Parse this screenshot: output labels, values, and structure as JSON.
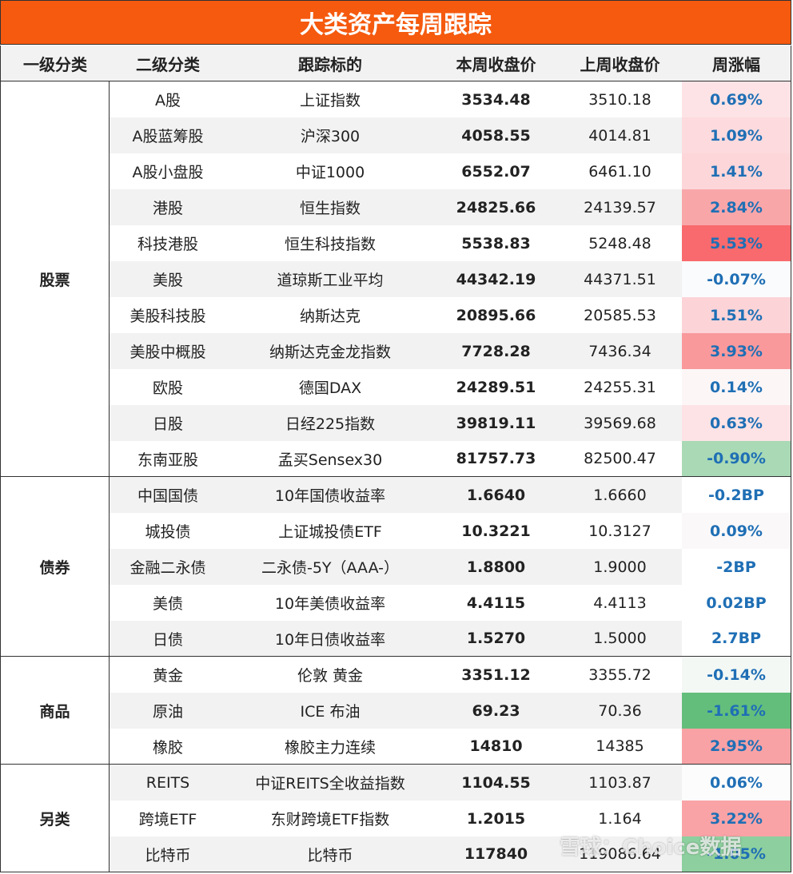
{
  "header": {
    "title": "大类资产每周跟踪"
  },
  "table": {
    "columns": [
      "一级分类",
      "二级分类",
      "跟踪标的",
      "本周收盘价",
      "上周收盘价",
      "周涨幅"
    ],
    "groups": [
      {
        "name": "股票",
        "rows": [
          [
            "A股",
            "上证指数",
            "3534.48",
            "3510.18",
            "0.69%"
          ],
          [
            "A股蓝筹股",
            "沪深300",
            "4058.55",
            "4014.81",
            "1.09%"
          ],
          [
            "A股小盘股",
            "中证1000",
            "6552.07",
            "6461.10",
            "1.41%"
          ],
          [
            "港股",
            "恒生指数",
            "24825.66",
            "24139.57",
            "2.84%"
          ],
          [
            "科技港股",
            "恒生科技指数",
            "5538.83",
            "5248.48",
            "5.53%"
          ],
          [
            "美股",
            "道琼斯工业平均",
            "44342.19",
            "44371.51",
            "-0.07%"
          ],
          [
            "美股科技股",
            "纳斯达克",
            "20895.66",
            "20585.53",
            "1.51%"
          ],
          [
            "美股中概股",
            "纳斯达克金龙指数",
            "7728.28",
            "7436.34",
            "3.93%"
          ],
          [
            "欧股",
            "德国DAX",
            "24289.51",
            "24255.31",
            "0.14%"
          ],
          [
            "日股",
            "日经225指数",
            "39819.11",
            "39569.68",
            "0.63%"
          ],
          [
            "东南亚股",
            "孟买Sensex30",
            "81757.73",
            "82500.47",
            "-0.90%"
          ]
        ],
        "colors": [
          "#fde3e5",
          "#fcdadd",
          "#fcd6d9",
          "#f9a6a9",
          "#f86a6d",
          "#fafbfc",
          "#fcd4d7",
          "#f9999c",
          "#fdf6f7",
          "#fde3e5",
          "#a9d9b5"
        ]
      },
      {
        "name": "债券",
        "rows": [
          [
            "中国国债",
            "10年国债收益率",
            "1.6640",
            "1.6660",
            "-0.2BP"
          ],
          [
            "城投债",
            "上证城投债ETF",
            "10.3221",
            "10.3127",
            "0.09%"
          ],
          [
            "金融二永债",
            "二永债-5Y（AAA-）",
            "1.8800",
            "1.9000",
            "-2BP"
          ],
          [
            "美债",
            "10年美债收益率",
            "4.4115",
            "4.4113",
            "0.02BP"
          ],
          [
            "日债",
            "10年日债收益率",
            "1.5270",
            "1.5000",
            "2.7BP"
          ]
        ],
        "colors": [
          "#ffffff",
          "#fbf8f9",
          "#ffffff",
          "#ffffff",
          "#ffffff"
        ]
      },
      {
        "name": "商品",
        "rows": [
          [
            "黄金",
            "伦敦 黄金",
            "3351.12",
            "3355.72",
            "-0.14%"
          ],
          [
            "原油",
            "ICE 布油",
            "69.23",
            "70.36",
            "-1.61%"
          ],
          [
            "橡胶",
            "橡胶主力连续",
            "14810",
            "14385",
            "2.95%"
          ]
        ],
        "colors": [
          "#f3f8f5",
          "#63be7b",
          "#f9a2a5"
        ]
      },
      {
        "name": "另类",
        "rows": [
          [
            "REITS",
            "中证REITS全收益指数",
            "1104.55",
            "1103.87",
            "0.06%"
          ],
          [
            "跨境ETF",
            "东财跨境ETF指数",
            "1.2015",
            "1.164",
            "3.22%"
          ],
          [
            "比特币",
            "比特币",
            "117840",
            "119086.64",
            "-1.05%"
          ]
        ],
        "colors": [
          "#fcfcfd",
          "#f9a3a6",
          "#8dcf9e"
        ]
      }
    ]
  },
  "watermark": "雪球：Choice数据"
}
